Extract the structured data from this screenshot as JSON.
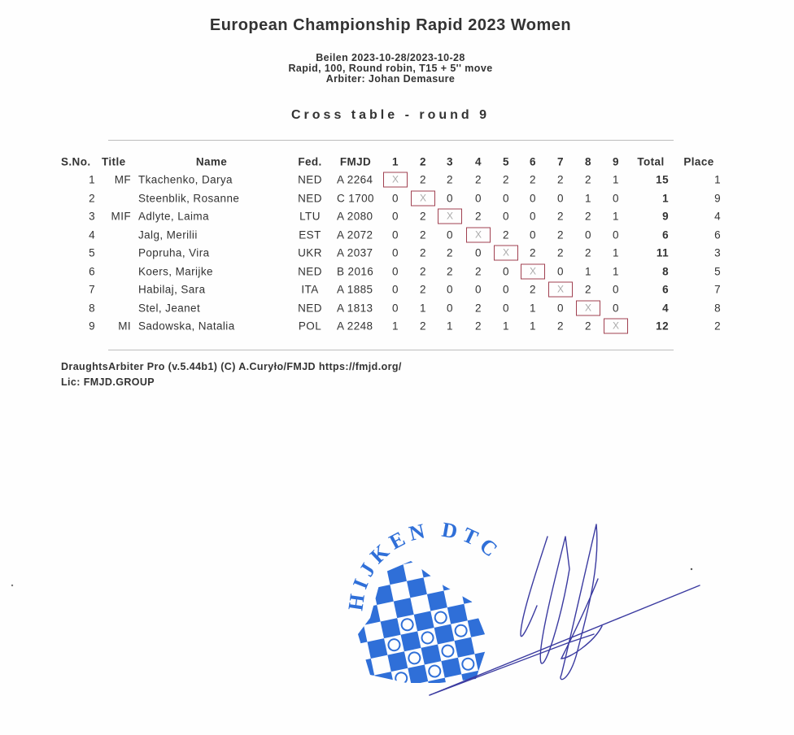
{
  "document": {
    "title": "European Championship Rapid 2023 Women",
    "info_lines": [
      "Beilen 2023-10-28/2023-10-28",
      "Rapid, 100, Round robin, T15 + 5'' move",
      "Arbiter: Johan Demasure"
    ],
    "subtitle": "Cross table - round 9"
  },
  "table": {
    "headers": {
      "sno": "S.No.",
      "title": "Title",
      "name": "Name",
      "fed": "Fed.",
      "fmjd": "FMJD",
      "rounds": [
        "1",
        "2",
        "3",
        "4",
        "5",
        "6",
        "7",
        "8",
        "9"
      ],
      "total": "Total",
      "place": "Place"
    },
    "rows": [
      {
        "sno": "1",
        "title": "MF",
        "name": "Tkachenko, Darya",
        "fed": "NED",
        "fmjd": "A 2264",
        "results": [
          "X",
          "2",
          "2",
          "2",
          "2",
          "2",
          "2",
          "2",
          "1"
        ],
        "total": "15",
        "place": "1"
      },
      {
        "sno": "2",
        "title": "",
        "name": "Steenblik, Rosanne",
        "fed": "NED",
        "fmjd": "C 1700",
        "results": [
          "0",
          "X",
          "0",
          "0",
          "0",
          "0",
          "0",
          "1",
          "0"
        ],
        "total": "1",
        "place": "9"
      },
      {
        "sno": "3",
        "title": "MIF",
        "name": "Adlyte, Laima",
        "fed": "LTU",
        "fmjd": "A 2080",
        "results": [
          "0",
          "2",
          "X",
          "2",
          "0",
          "0",
          "2",
          "2",
          "1"
        ],
        "total": "9",
        "place": "4"
      },
      {
        "sno": "4",
        "title": "",
        "name": "Jalg, Merilii",
        "fed": "EST",
        "fmjd": "A 2072",
        "results": [
          "0",
          "2",
          "0",
          "X",
          "2",
          "0",
          "2",
          "0",
          "0"
        ],
        "total": "6",
        "place": "6"
      },
      {
        "sno": "5",
        "title": "",
        "name": "Popruha, Vira",
        "fed": "UKR",
        "fmjd": "A 2037",
        "results": [
          "0",
          "2",
          "2",
          "0",
          "X",
          "2",
          "2",
          "2",
          "1"
        ],
        "total": "11",
        "place": "3"
      },
      {
        "sno": "6",
        "title": "",
        "name": "Koers, Marijke",
        "fed": "NED",
        "fmjd": "B 2016",
        "results": [
          "0",
          "2",
          "2",
          "2",
          "0",
          "X",
          "0",
          "1",
          "1"
        ],
        "total": "8",
        "place": "5"
      },
      {
        "sno": "7",
        "title": "",
        "name": "Habilaj, Sara",
        "fed": "ITA",
        "fmjd": "A 1885",
        "results": [
          "0",
          "2",
          "0",
          "0",
          "0",
          "2",
          "X",
          "2",
          "0"
        ],
        "total": "6",
        "place": "7"
      },
      {
        "sno": "8",
        "title": "",
        "name": "Stel, Jeanet",
        "fed": "NED",
        "fmjd": "A 1813",
        "results": [
          "0",
          "1",
          "0",
          "2",
          "0",
          "1",
          "0",
          "X",
          "0"
        ],
        "total": "4",
        "place": "8"
      },
      {
        "sno": "9",
        "title": "MI",
        "name": "Sadowska, Natalia",
        "fed": "POL",
        "fmjd": "A 2248",
        "results": [
          "1",
          "2",
          "1",
          "2",
          "1",
          "1",
          "2",
          "2",
          "X"
        ],
        "total": "12",
        "place": "2"
      }
    ]
  },
  "footer": {
    "software": "DraughtsArbiter Pro (v.5.44b1) (C) A.Curyło/FMJD  https://fmjd.org/",
    "license": "Lic: FMJD.GROUP"
  },
  "stamp": {
    "text": "HIJKEN DTC",
    "color": "#2f6fd8"
  },
  "colors": {
    "self_cell_border": "#a04050",
    "signature_ink": "#3a3aa0"
  }
}
